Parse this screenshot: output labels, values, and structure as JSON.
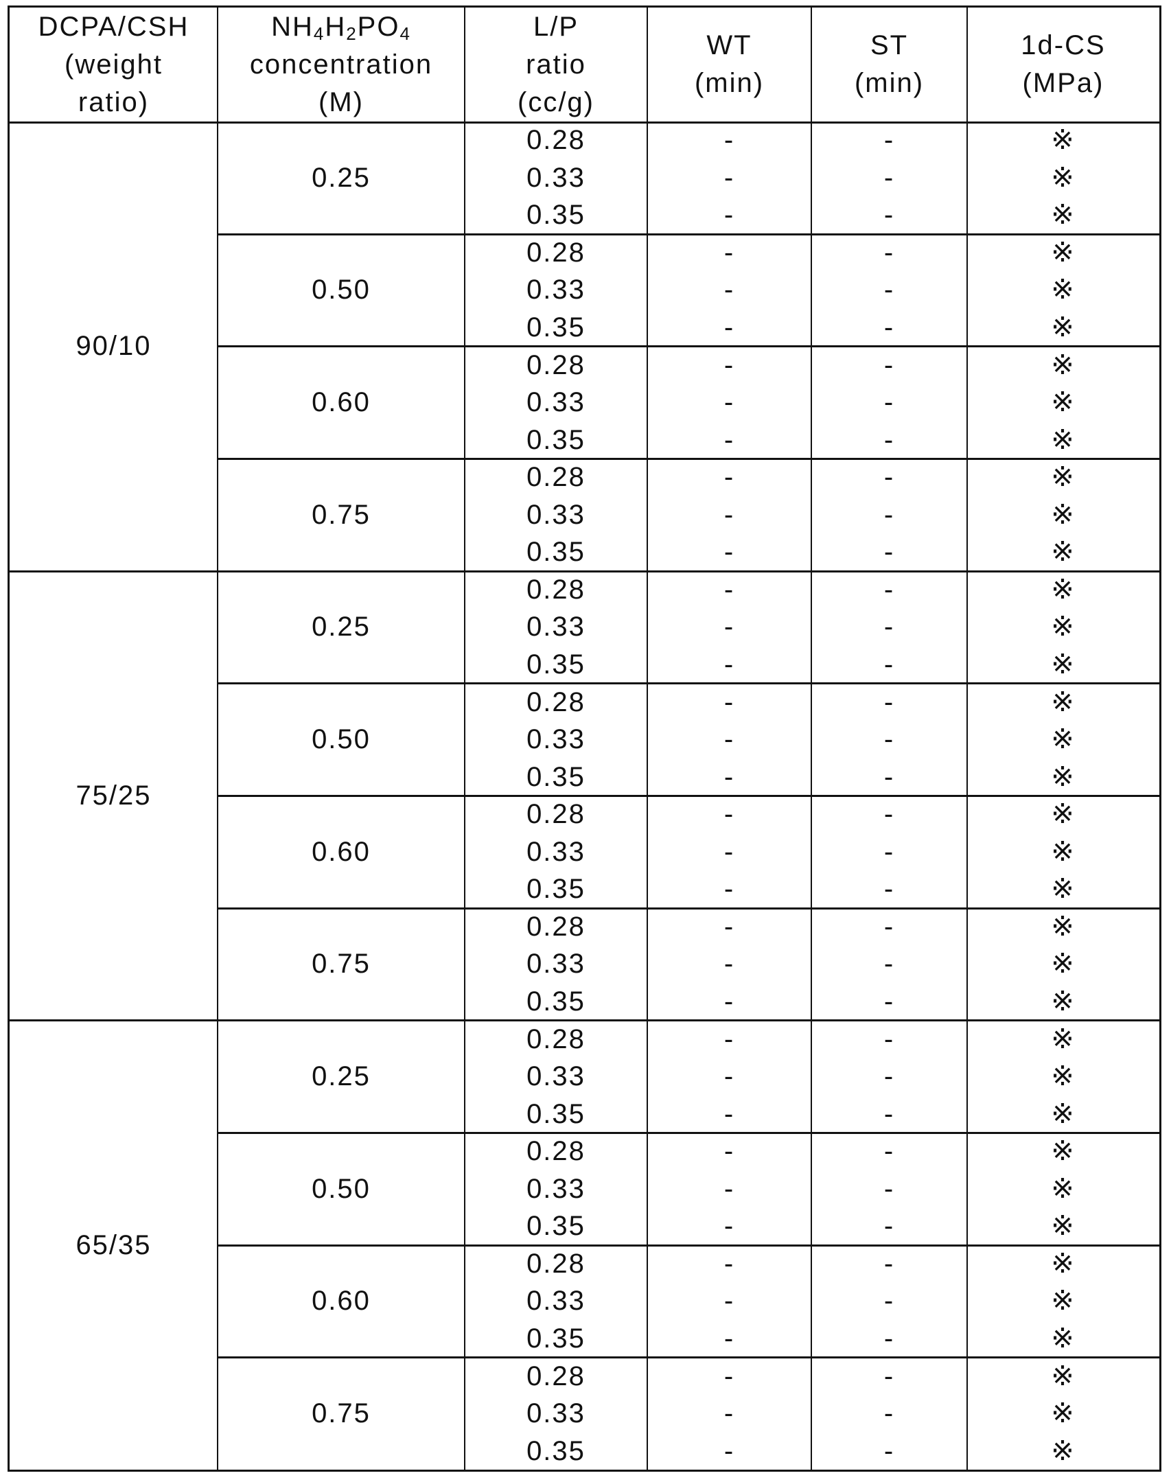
{
  "header": {
    "col1": [
      "DCPA/CSH",
      "(weight",
      "ratio)"
    ],
    "col2_formula": {
      "a": "NH",
      "s1": "4",
      "b": "H",
      "s2": "2",
      "c": "PO",
      "s3": "4"
    },
    "col2": [
      "concentration",
      "(M)"
    ],
    "col3": [
      "L/P",
      "ratio",
      "(cc/g)"
    ],
    "col4": [
      "WT",
      "(min)"
    ],
    "col5": [
      "ST",
      "(min)"
    ],
    "col6": [
      "1d-CS",
      "(MPa)"
    ]
  },
  "groups": [
    {
      "ratio": "90/10",
      "concentrations": [
        {
          "value": "0.25",
          "rows": [
            {
              "lp": "0.28",
              "wt": "-",
              "st": "-",
              "cs": "※"
            },
            {
              "lp": "0.33",
              "wt": "-",
              "st": "-",
              "cs": "※"
            },
            {
              "lp": "0.35",
              "wt": "-",
              "st": "-",
              "cs": "※"
            }
          ]
        },
        {
          "value": "0.50",
          "rows": [
            {
              "lp": "0.28",
              "wt": "-",
              "st": "-",
              "cs": "※"
            },
            {
              "lp": "0.33",
              "wt": "-",
              "st": "-",
              "cs": "※"
            },
            {
              "lp": "0.35",
              "wt": "-",
              "st": "-",
              "cs": "※"
            }
          ]
        },
        {
          "value": "0.60",
          "rows": [
            {
              "lp": "0.28",
              "wt": "-",
              "st": "-",
              "cs": "※"
            },
            {
              "lp": "0.33",
              "wt": "-",
              "st": "-",
              "cs": "※"
            },
            {
              "lp": "0.35",
              "wt": "-",
              "st": "-",
              "cs": "※"
            }
          ]
        },
        {
          "value": "0.75",
          "rows": [
            {
              "lp": "0.28",
              "wt": "-",
              "st": "-",
              "cs": "※"
            },
            {
              "lp": "0.33",
              "wt": "-",
              "st": "-",
              "cs": "※"
            },
            {
              "lp": "0.35",
              "wt": "-",
              "st": "-",
              "cs": "※"
            }
          ]
        }
      ]
    },
    {
      "ratio": "75/25",
      "concentrations": [
        {
          "value": "0.25",
          "rows": [
            {
              "lp": "0.28",
              "wt": "-",
              "st": "-",
              "cs": "※"
            },
            {
              "lp": "0.33",
              "wt": "-",
              "st": "-",
              "cs": "※"
            },
            {
              "lp": "0.35",
              "wt": "-",
              "st": "-",
              "cs": "※"
            }
          ]
        },
        {
          "value": "0.50",
          "rows": [
            {
              "lp": "0.28",
              "wt": "-",
              "st": "-",
              "cs": "※"
            },
            {
              "lp": "0.33",
              "wt": "-",
              "st": "-",
              "cs": "※"
            },
            {
              "lp": "0.35",
              "wt": "-",
              "st": "-",
              "cs": "※"
            }
          ]
        },
        {
          "value": "0.60",
          "rows": [
            {
              "lp": "0.28",
              "wt": "-",
              "st": "-",
              "cs": "※"
            },
            {
              "lp": "0.33",
              "wt": "-",
              "st": "-",
              "cs": "※"
            },
            {
              "lp": "0.35",
              "wt": "-",
              "st": "-",
              "cs": "※"
            }
          ]
        },
        {
          "value": "0.75",
          "rows": [
            {
              "lp": "0.28",
              "wt": "-",
              "st": "-",
              "cs": "※"
            },
            {
              "lp": "0.33",
              "wt": "-",
              "st": "-",
              "cs": "※"
            },
            {
              "lp": "0.35",
              "wt": "-",
              "st": "-",
              "cs": "※"
            }
          ]
        }
      ]
    },
    {
      "ratio": "65/35",
      "concentrations": [
        {
          "value": "0.25",
          "rows": [
            {
              "lp": "0.28",
              "wt": "-",
              "st": "-",
              "cs": "※"
            },
            {
              "lp": "0.33",
              "wt": "-",
              "st": "-",
              "cs": "※"
            },
            {
              "lp": "0.35",
              "wt": "-",
              "st": "-",
              "cs": "※"
            }
          ]
        },
        {
          "value": "0.50",
          "rows": [
            {
              "lp": "0.28",
              "wt": "-",
              "st": "-",
              "cs": "※"
            },
            {
              "lp": "0.33",
              "wt": "-",
              "st": "-",
              "cs": "※"
            },
            {
              "lp": "0.35",
              "wt": "-",
              "st": "-",
              "cs": "※"
            }
          ]
        },
        {
          "value": "0.60",
          "rows": [
            {
              "lp": "0.28",
              "wt": "-",
              "st": "-",
              "cs": "※"
            },
            {
              "lp": "0.33",
              "wt": "-",
              "st": "-",
              "cs": "※"
            },
            {
              "lp": "0.35",
              "wt": "-",
              "st": "-",
              "cs": "※"
            }
          ]
        },
        {
          "value": "0.75",
          "rows": [
            {
              "lp": "0.28",
              "wt": "-",
              "st": "-",
              "cs": "※"
            },
            {
              "lp": "0.33",
              "wt": "-",
              "st": "-",
              "cs": "※"
            },
            {
              "lp": "0.35",
              "wt": "-",
              "st": "-",
              "cs": "※"
            }
          ]
        }
      ]
    }
  ]
}
